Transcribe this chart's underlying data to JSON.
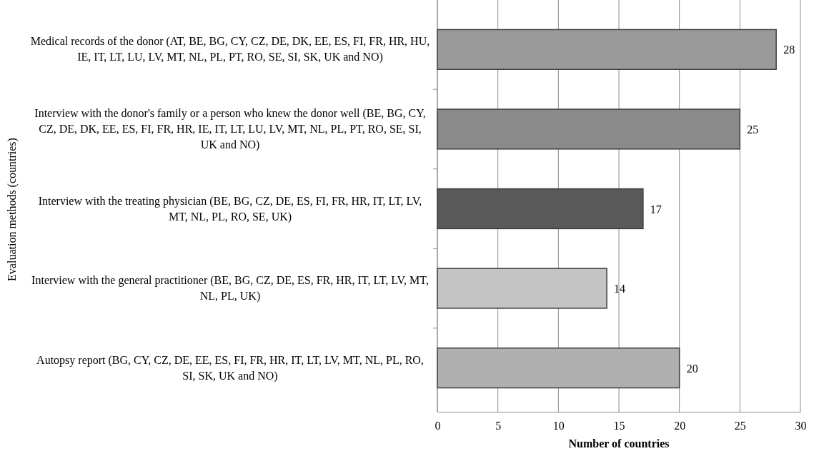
{
  "chart_data": {
    "type": "bar",
    "orientation": "horizontal",
    "xlabel": "Number of countries",
    "ylabel": "Evaluation methods (countries)",
    "categories": [
      "Medical records of the donor (AT, BE, BG, CY, CZ, DE, DK, EE, ES, FI, FR, HR, HU, IE, IT, LT, LU, LV, MT, NL, PL, PT, RO, SE, SI, SK, UK and NO)",
      "Interview with the donor's family or a person who knew the donor well (BE, BG, CY, CZ, DE, DK, EE, ES, FI, FR, HR, IE, IT, LT, LU, LV, MT, NL, PL, PT, RO, SE, SI, UK and NO)",
      "Interview with the treating physician (BE, BG, CZ, DE, ES, FI, FR, HR, IT, LT, LV, MT, NL, PL, RO, SE, UK)",
      "Interview with the general practitioner (BE, BG, CZ, DE, ES, FR, HR, IT, LT, LV, MT, NL, PL, UK)",
      "Autopsy report (BG, CY, CZ, DE, EE, ES, FI, FR, HR, IT, LT, LV, MT, NL, PL, RO, SI, SK, UK and NO)"
    ],
    "values": [
      28,
      25,
      17,
      14,
      20
    ],
    "colors": [
      "#9a9a9a",
      "#8a8a8a",
      "#595959",
      "#c4c4c4",
      "#b0b0b0"
    ],
    "xlim": [
      0,
      30
    ],
    "xticks": [
      0,
      5,
      10,
      15,
      20,
      25,
      30
    ],
    "grid": "x",
    "data_labels": true
  }
}
